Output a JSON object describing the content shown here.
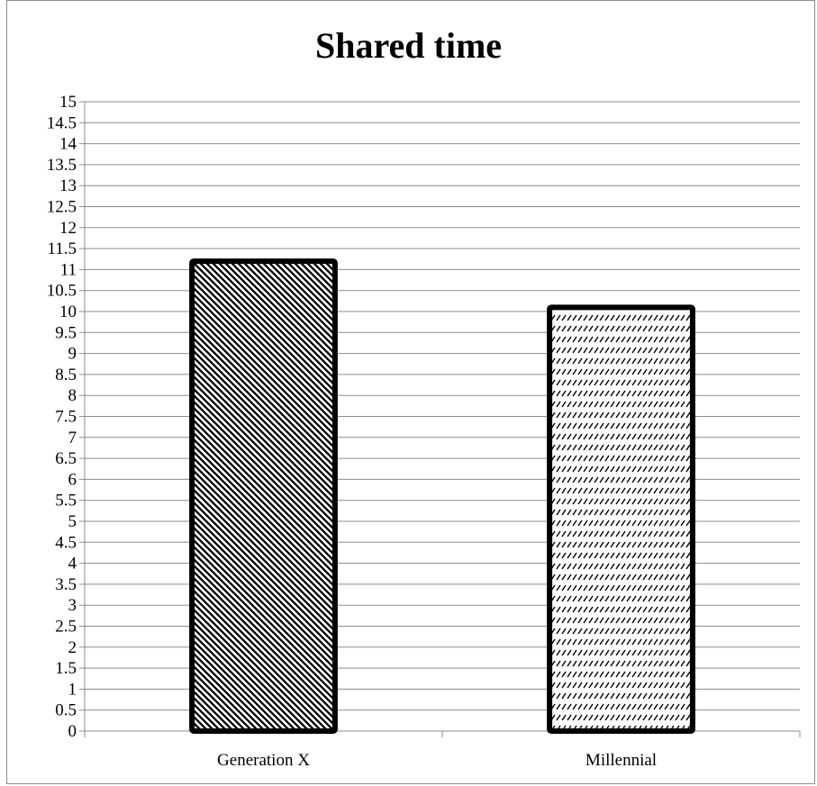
{
  "chart_data": {
    "type": "bar",
    "title": "Shared time",
    "xlabel": "",
    "ylabel": "",
    "categories": [
      "Generation X",
      "Millennial"
    ],
    "values": [
      11.2,
      10.1
    ],
    "ylim": [
      0,
      15
    ],
    "ytick_step": 0.5,
    "yticks": [
      "0",
      "0.5",
      "1",
      "1.5",
      "2",
      "2.5",
      "3",
      "3.5",
      "4",
      "4.5",
      "5",
      "5.5",
      "6",
      "6.5",
      "7",
      "7.5",
      "8",
      "8.5",
      "9",
      "9.5",
      "10",
      "10.5",
      "11",
      "11.5",
      "12",
      "12.5",
      "13",
      "13.5",
      "14",
      "14.5",
      "15"
    ],
    "grid": true,
    "legend": "none",
    "bar_fill_patterns": [
      "dense-diagonal-hatch",
      "dashed-diagonal-hatch"
    ],
    "colors": {
      "bar_stroke": "#000000",
      "gridline": "#8c8c8c",
      "axis": "#8c8c8c",
      "background": "#ffffff"
    }
  }
}
